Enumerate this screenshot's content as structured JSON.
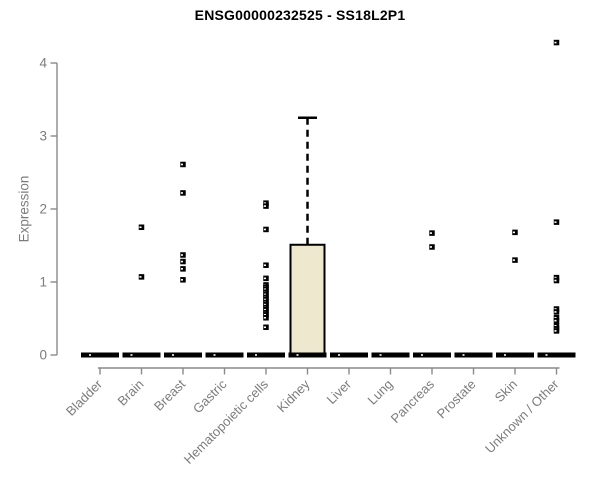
{
  "title": "ENSG00000232525 - SS18L2P1",
  "y_axis": {
    "label": "Expression"
  },
  "colors": {
    "box_fill": "#EDE8CE",
    "box_stroke": "#000000",
    "median_bar": "#000000",
    "axis_line": "#8a8a8a",
    "tick_label": "#7c7c7c",
    "title_text": "#000000",
    "outlier_point": "#000000"
  },
  "chart_data": {
    "type": "boxplot",
    "title": "ENSG00000232525 - SS18L2P1",
    "xlabel": "",
    "ylabel": "Expression",
    "ylim": [
      0,
      4.4
    ],
    "yticks": [
      0,
      1,
      2,
      3,
      4
    ],
    "grid": false,
    "legend": "none",
    "categories": [
      "Bladder",
      "Brain",
      "Breast",
      "Gastric",
      "Hematopoietic cells",
      "Kidney",
      "Liver",
      "Lung",
      "Pancreas",
      "Prostate",
      "Skin",
      "Unknown / Other"
    ],
    "boxes": [
      {
        "category": "Bladder",
        "whisker_low": 0,
        "q1": 0,
        "median": 0,
        "q3": 0,
        "whisker_high": 0,
        "outliers": []
      },
      {
        "category": "Brain",
        "whisker_low": 0,
        "q1": 0,
        "median": 0,
        "q3": 0,
        "whisker_high": 0,
        "outliers": [
          1.75,
          1.07
        ]
      },
      {
        "category": "Breast",
        "whisker_low": 0,
        "q1": 0,
        "median": 0,
        "q3": 0,
        "whisker_high": 0,
        "outliers": [
          2.61,
          2.22,
          1.37,
          1.28,
          1.18,
          1.03
        ]
      },
      {
        "category": "Gastric",
        "whisker_low": 0,
        "q1": 0,
        "median": 0,
        "q3": 0,
        "whisker_high": 0,
        "outliers": []
      },
      {
        "category": "Hematopoietic cells",
        "whisker_low": 0,
        "q1": 0,
        "median": 0,
        "q3": 0,
        "whisker_high": 0,
        "outliers": [
          2.08,
          2.04,
          1.72,
          1.23,
          1.05,
          0.96,
          0.93,
          0.9,
          0.86,
          0.83,
          0.79,
          0.76,
          0.72,
          0.69,
          0.65,
          0.62,
          0.58,
          0.55,
          0.51,
          0.38
        ]
      },
      {
        "category": "Kidney",
        "whisker_low": 0,
        "q1": 0,
        "median": 0,
        "q3": 1.51,
        "whisker_high": 3.25,
        "outliers": []
      },
      {
        "category": "Liver",
        "whisker_low": 0,
        "q1": 0,
        "median": 0,
        "q3": 0,
        "whisker_high": 0,
        "outliers": []
      },
      {
        "category": "Lung",
        "whisker_low": 0,
        "q1": 0,
        "median": 0,
        "q3": 0,
        "whisker_high": 0,
        "outliers": []
      },
      {
        "category": "Pancreas",
        "whisker_low": 0,
        "q1": 0,
        "median": 0,
        "q3": 0,
        "whisker_high": 0,
        "outliers": [
          1.67,
          1.48
        ]
      },
      {
        "category": "Prostate",
        "whisker_low": 0,
        "q1": 0,
        "median": 0,
        "q3": 0,
        "whisker_high": 0,
        "outliers": []
      },
      {
        "category": "Skin",
        "whisker_low": 0,
        "q1": 0,
        "median": 0,
        "q3": 0,
        "whisker_high": 0,
        "outliers": [
          1.68,
          1.3
        ]
      },
      {
        "category": "Unknown / Other",
        "whisker_low": 0,
        "q1": 0,
        "median": 0,
        "q3": 0,
        "whisker_high": 0,
        "outliers": [
          4.28,
          1.82,
          1.06,
          1.02,
          0.63,
          0.59,
          0.51,
          0.47,
          0.4,
          0.36,
          0.33
        ]
      }
    ]
  }
}
